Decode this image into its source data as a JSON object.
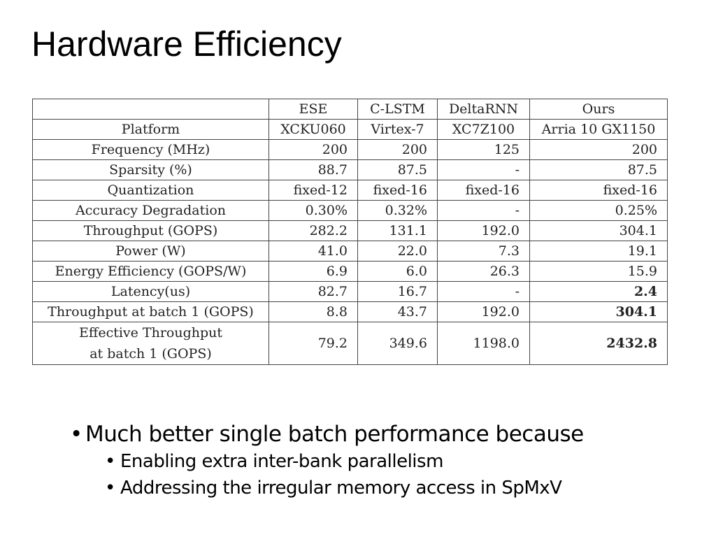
{
  "title": "Hardware Efficiency",
  "table": {
    "header": [
      "",
      "ESE",
      "C-LSTM",
      "DeltaRNN",
      "Ours"
    ],
    "rows": [
      {
        "label": "Platform",
        "values": [
          "XCKU060",
          "Virtex-7",
          "XC7Z100",
          "Arria 10 GX1150"
        ],
        "center": true
      },
      {
        "label": "Frequency (MHz)",
        "values": [
          "200",
          "200",
          "125",
          "200"
        ]
      },
      {
        "label": "Sparsity (%)",
        "values": [
          "88.7",
          "87.5",
          "-",
          "87.5"
        ]
      },
      {
        "label": "Quantization",
        "values": [
          "fixed-12",
          "fixed-16",
          "fixed-16",
          "fixed-16"
        ]
      },
      {
        "label": "Accuracy Degradation",
        "values": [
          "0.30%",
          "0.32%",
          "-",
          "0.25%"
        ]
      },
      {
        "label": "Throughput (GOPS)",
        "values": [
          "282.2",
          "131.1",
          "192.0",
          "304.1"
        ]
      },
      {
        "label": "Power (W)",
        "values": [
          "41.0",
          "22.0",
          "7.3",
          "19.1"
        ]
      },
      {
        "label": "Energy Efficiency (GOPS/W)",
        "values": [
          "6.9",
          "6.0",
          "26.3",
          "15.9"
        ]
      },
      {
        "label": "Latency(us)",
        "values": [
          "82.7",
          "16.7",
          "-",
          "2.4"
        ],
        "bold_last": true
      },
      {
        "label": "Throughput at batch 1 (GOPS)",
        "values": [
          "8.8",
          "43.7",
          "192.0",
          "304.1"
        ],
        "bold_last": true
      },
      {
        "label": "Effective Throughput",
        "label2": "at batch 1 (GOPS)",
        "values": [
          "79.2",
          "349.6",
          "1198.0",
          "2432.8"
        ],
        "bold_last": true,
        "tall": true
      }
    ]
  },
  "bullets": {
    "main": "Much better single batch performance because",
    "sub": [
      "Enabling extra inter-bank parallelism",
      "Addressing the irregular memory access in SpMxV"
    ]
  }
}
